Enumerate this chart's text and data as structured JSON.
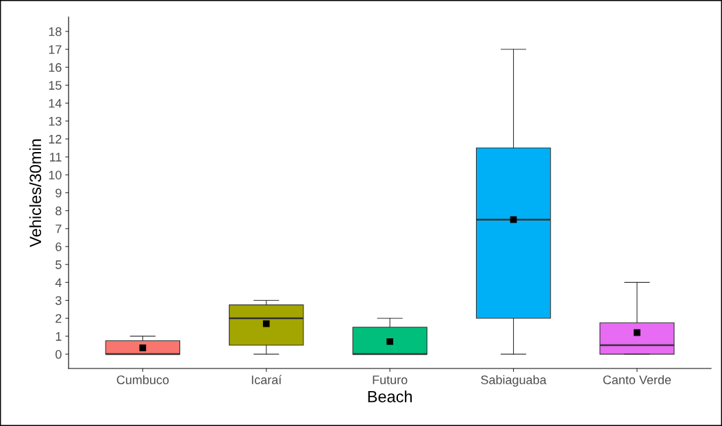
{
  "chart_data": {
    "type": "box",
    "xlabel": "Beach",
    "ylabel": "Vehicles/30min",
    "categories": [
      "Cumbuco",
      "Icaraí",
      "Futuro",
      "Sabiaguaba",
      "Canto Verde"
    ],
    "colors": [
      "#f8766d",
      "#a3a500",
      "#00bf7d",
      "#00b0f6",
      "#e76bf3"
    ],
    "boxes": [
      {
        "low": 0,
        "q1": 0,
        "median": 0,
        "q3": 0.75,
        "high": 1,
        "mean": 0.35
      },
      {
        "low": 0,
        "q1": 0.5,
        "median": 2,
        "q3": 2.75,
        "high": 3,
        "mean": 1.7
      },
      {
        "low": 0,
        "q1": 0,
        "median": 0,
        "q3": 1.5,
        "high": 2,
        "mean": 0.7
      },
      {
        "low": 0,
        "q1": 2,
        "median": 7.5,
        "q3": 11.5,
        "high": 17,
        "mean": 7.5
      },
      {
        "low": 0,
        "q1": 0,
        "median": 0.5,
        "q3": 1.75,
        "high": 4,
        "mean": 1.2
      }
    ],
    "ylim": [
      -0.8,
      18.8
    ],
    "yticks": [
      0,
      1,
      2,
      3,
      4,
      5,
      6,
      7,
      8,
      9,
      10,
      11,
      12,
      13,
      14,
      15,
      16,
      17,
      18
    ],
    "marker": "square",
    "grid": false,
    "legend": false
  }
}
